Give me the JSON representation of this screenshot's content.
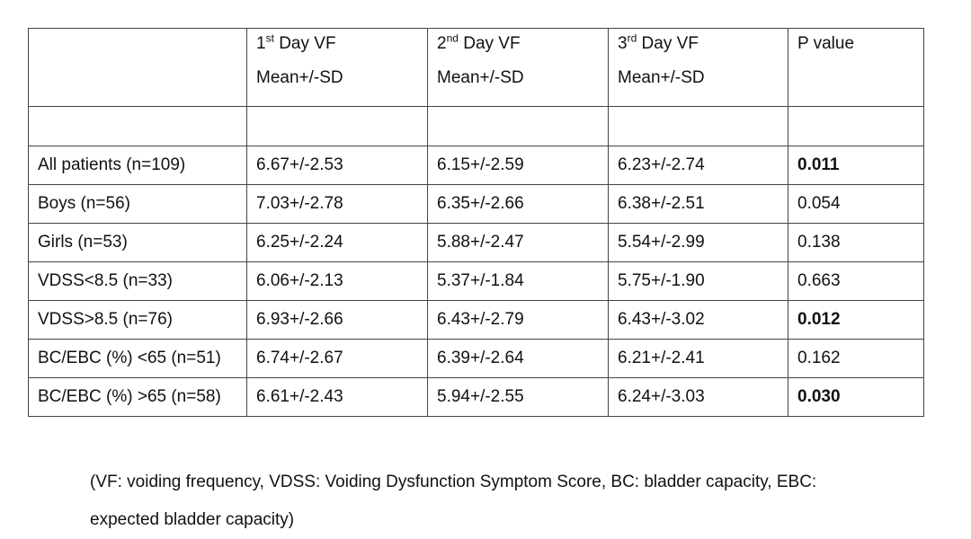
{
  "table": {
    "header": [
      {
        "label": "",
        "sub": ""
      },
      {
        "ordinal": "1",
        "suffix": "st",
        "label": " Day VF",
        "sub": "Mean+/-SD"
      },
      {
        "ordinal": "2",
        "suffix": "nd",
        "label": " Day VF",
        "sub": "Mean+/-SD"
      },
      {
        "ordinal": "3",
        "suffix": "rd",
        "label": " Day VF",
        "sub": "Mean+/-SD"
      },
      {
        "label": "P value",
        "sub": ""
      }
    ],
    "rows": [
      {
        "group": "All patients (n=109)",
        "day1": "6.67+/-2.53",
        "day2": "6.15+/-2.59",
        "day3": "6.23+/-2.74",
        "p": "0.011",
        "p_bold": true
      },
      {
        "group": "Boys (n=56)",
        "day1": "7.03+/-2.78",
        "day2": "6.35+/-2.66",
        "day3": "6.38+/-2.51",
        "p": "0.054",
        "p_bold": false
      },
      {
        "group": "Girls (n=53)",
        "day1": "6.25+/-2.24",
        "day2": "5.88+/-2.47",
        "day3": "5.54+/-2.99",
        "p": "0.138",
        "p_bold": false
      },
      {
        "group": "VDSS<8.5 (n=33)",
        "day1": "6.06+/-2.13",
        "day2": "5.37+/-1.84",
        "day3": "5.75+/-1.90",
        "p": "0.663",
        "p_bold": false
      },
      {
        "group": "VDSS>8.5 (n=76)",
        "day1": "6.93+/-2.66",
        "day2": "6.43+/-2.79",
        "day3": "6.43+/-3.02",
        "p": "0.012",
        "p_bold": true
      },
      {
        "group": "BC/EBC (%) <65 (n=51)",
        "day1": "6.74+/-2.67",
        "day2": "6.39+/-2.64",
        "day3": "6.21+/-2.41",
        "p": "0.162",
        "p_bold": false
      },
      {
        "group": "BC/EBC (%) >65 (n=58)",
        "day1": "6.61+/-2.43",
        "day2": "5.94+/-2.55",
        "day3": "6.24+/-3.03",
        "p": "0.030",
        "p_bold": true
      }
    ]
  },
  "footnote": {
    "line1": "(VF: voiding frequency, VDSS: Voiding Dysfunction Symptom Score, BC: bladder capacity, EBC:",
    "line2": "expected bladder capacity)"
  }
}
